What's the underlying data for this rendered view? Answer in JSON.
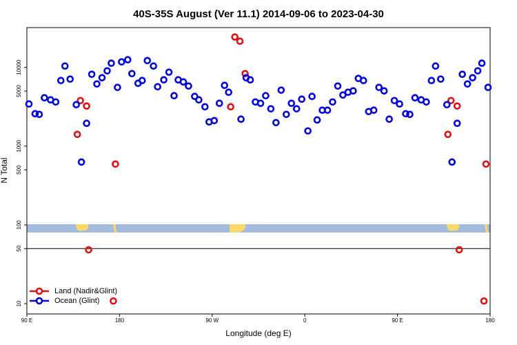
{
  "chart_data": {
    "type": "scatter",
    "title": "40S-35S August (Ver 11.1)   2014-09-06 to 2023-04-30",
    "x_label": "Longitude (deg E)",
    "y_label": "N Total",
    "xlim": [
      90,
      540
    ],
    "xticks": [
      {
        "value": 90,
        "label": "90 E"
      },
      180,
      {
        "value": 270,
        "label": "90 W"
      },
      {
        "value": 360,
        "label": "0"
      },
      {
        "value": 450,
        "label": "90 E"
      },
      {
        "value": 540,
        "label": "180"
      }
    ],
    "ylim": [
      7.4,
      32000
    ],
    "y_log": true,
    "yticks": [
      10,
      50,
      100,
      500,
      1000,
      5000,
      10000
    ],
    "legend": "bottom-left",
    "series": [
      {
        "name": "Land (Nadir&Glint)",
        "color": "#e01010",
        "x": [
          139,
          142,
          148,
          150,
          174,
          176,
          288,
          292,
          297,
          302,
          499,
          502,
          508,
          510,
          534,
          536
        ],
        "values": [
          1410,
          3790,
          3230,
          48.3,
          10.8,
          592,
          3160,
          24300,
          21500,
          8340,
          1410,
          3790,
          3230,
          48.3,
          10.8,
          592
        ]
      },
      {
        "name": "Ocean (Glint)",
        "color": "#0000dd",
        "x": [
          92,
          98,
          102,
          107,
          113,
          118,
          123,
          127,
          132,
          138,
          143,
          148,
          153,
          158,
          163,
          168,
          172,
          178,
          182,
          188,
          192,
          198,
          202,
          207,
          213,
          217,
          223,
          228,
          233,
          237,
          242,
          247,
          253,
          257,
          263,
          267,
          272,
          277,
          282,
          286,
          298,
          303,
          307,
          312,
          317,
          322,
          327,
          332,
          337,
          342,
          347,
          352,
          357,
          363,
          367,
          372,
          377,
          382,
          387,
          392,
          397,
          402,
          407,
          412,
          417,
          422,
          427,
          432,
          437,
          442,
          447,
          452,
          458,
          462,
          467,
          473,
          478,
          483,
          487,
          492,
          498,
          503,
          508,
          513,
          518,
          523,
          528,
          532,
          538
        ],
        "values": [
          3430,
          2580,
          2530,
          4110,
          3870,
          3640,
          6810,
          10400,
          7100,
          3360,
          628,
          1950,
          8170,
          6160,
          7390,
          9040,
          11300,
          5570,
          11750,
          12500,
          8340,
          6280,
          6810,
          12200,
          10400,
          5680,
          6950,
          8690,
          4370,
          6950,
          6540,
          5800,
          4280,
          3870,
          3160,
          2030,
          2110,
          3500,
          5910,
          4830,
          2200,
          7390,
          6950,
          3640,
          3500,
          4370,
          2980,
          1990,
          5140,
          2530,
          3500,
          2980,
          3950,
          1560,
          4280,
          2150,
          2860,
          2860,
          3640,
          5800,
          4460,
          4830,
          5030,
          7240,
          6810,
          2750,
          2860,
          5570,
          5030,
          2200,
          3790,
          3430,
          2580,
          2530,
          4110,
          3870,
          3640,
          6810,
          10400,
          7100,
          3360,
          628,
          1950,
          8170,
          6160,
          7390,
          9040,
          11300,
          5570
        ]
      }
    ]
  }
}
